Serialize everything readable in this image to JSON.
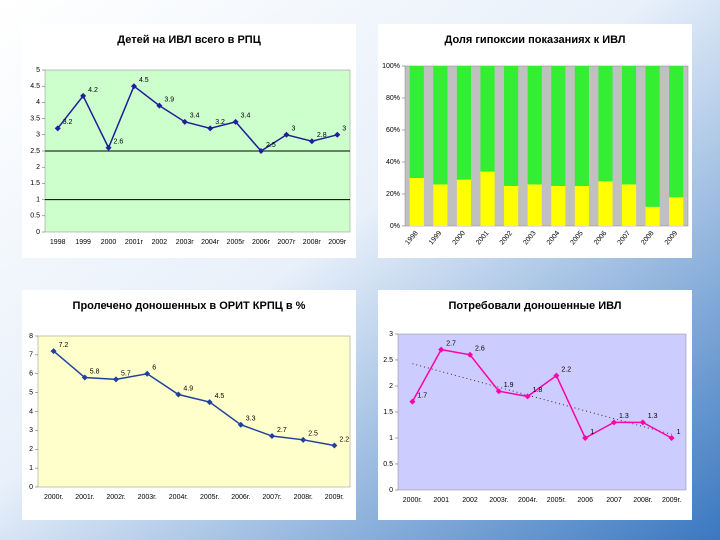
{
  "chart_data": [
    {
      "type": "line",
      "title": "Детей на ИВЛ всего в РПЦ",
      "categories": [
        "1998",
        "1999",
        "2000",
        "2001г",
        "2002",
        "2003г",
        "2004г",
        "2005г",
        "2006г",
        "2007г",
        "2008г",
        "2009г"
      ],
      "values": [
        3.2,
        4.2,
        2.6,
        4.5,
        3.9,
        3.4,
        3.2,
        3.4,
        2.5,
        3,
        2.8,
        3
      ],
      "color": "#1f1f9a",
      "background": "#ccffcc",
      "reference_lines": [
        1,
        2.5
      ],
      "ylim": [
        0,
        5
      ],
      "yticks": [
        0,
        0.5,
        1,
        1.5,
        2,
        2.5,
        3,
        3.5,
        4,
        4.5,
        5
      ]
    },
    {
      "type": "stacked_bar",
      "title": "Доля гипоксии  показаниях к ИВЛ",
      "categories": [
        "1998",
        "1999",
        "2000",
        "2001",
        "2002",
        "2003",
        "2004",
        "2005",
        "2006",
        "2007",
        "2008",
        "2009"
      ],
      "series": [
        {
          "color": "#ffff00",
          "values": [
            30,
            26,
            29,
            34,
            25,
            26,
            25,
            25,
            28,
            26,
            12,
            18
          ]
        },
        {
          "color": "#33ee33",
          "values": [
            70,
            74,
            71,
            66,
            75,
            74,
            75,
            75,
            72,
            74,
            88,
            82
          ]
        }
      ],
      "background": "#c0c0c0",
      "ylim": [
        0,
        100
      ],
      "yticks": [
        {
          "value": 0,
          "label": "0%"
        },
        {
          "value": 20,
          "label": "20%"
        },
        {
          "value": 40,
          "label": "40%"
        },
        {
          "value": 60,
          "label": "60%"
        },
        {
          "value": 80,
          "label": "80%"
        },
        {
          "value": 100,
          "label": "100%"
        }
      ]
    },
    {
      "type": "line",
      "title": "Пролечено доношенных  в  ОРИТ КРПЦ в %",
      "categories": [
        "2000г.",
        "2001г.",
        "2002г.",
        "2003г.",
        "2004г.",
        "2005г.",
        "2006г.",
        "2007г.",
        "2008г.",
        "2009г."
      ],
      "values": [
        7.2,
        5.8,
        5.7,
        6,
        4.9,
        4.5,
        3.3,
        2.7,
        2.5,
        2.2
      ],
      "color": "#2040a0",
      "background": "#ffffcc",
      "ylim": [
        0,
        8
      ],
      "yticks": [
        0,
        1,
        2,
        3,
        4,
        5,
        6,
        7,
        8
      ]
    },
    {
      "type": "line",
      "title": "Потребовали доношенные ИВЛ",
      "categories": [
        "2000г.",
        "2001",
        "2002",
        "2003г.",
        "2004г.",
        "2005г.",
        "2006",
        "2007",
        "2008г.",
        "2009г."
      ],
      "values": [
        1.7,
        2.7,
        2.6,
        1.9,
        1.8,
        2.2,
        1.0,
        1.3,
        1.3,
        1
      ],
      "color": "#ff00aa",
      "background": "#ccccff",
      "trendline": true,
      "ylim": [
        0,
        3
      ],
      "yticks": [
        0,
        0.5,
        1,
        1.5,
        2,
        2.5,
        3
      ]
    }
  ]
}
